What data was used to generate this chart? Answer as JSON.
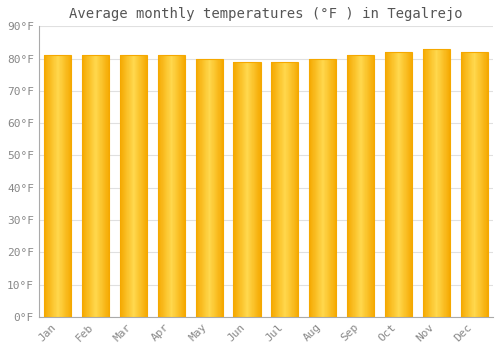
{
  "title": "Average monthly temperatures (°F ) in Tegalrejo",
  "months": [
    "Jan",
    "Feb",
    "Mar",
    "Apr",
    "May",
    "Jun",
    "Jul",
    "Aug",
    "Sep",
    "Oct",
    "Nov",
    "Dec"
  ],
  "values": [
    81,
    81,
    81,
    81,
    80,
    79,
    79,
    80,
    81,
    82,
    83,
    82
  ],
  "bar_color_center": "#FFD84D",
  "bar_color_edge": "#F5A800",
  "background_color": "#FFFFFF",
  "grid_color": "#E0E0E0",
  "title_fontsize": 10,
  "tick_fontsize": 8,
  "ylim": [
    0,
    90
  ],
  "yticks": [
    0,
    10,
    20,
    30,
    40,
    50,
    60,
    70,
    80,
    90
  ]
}
